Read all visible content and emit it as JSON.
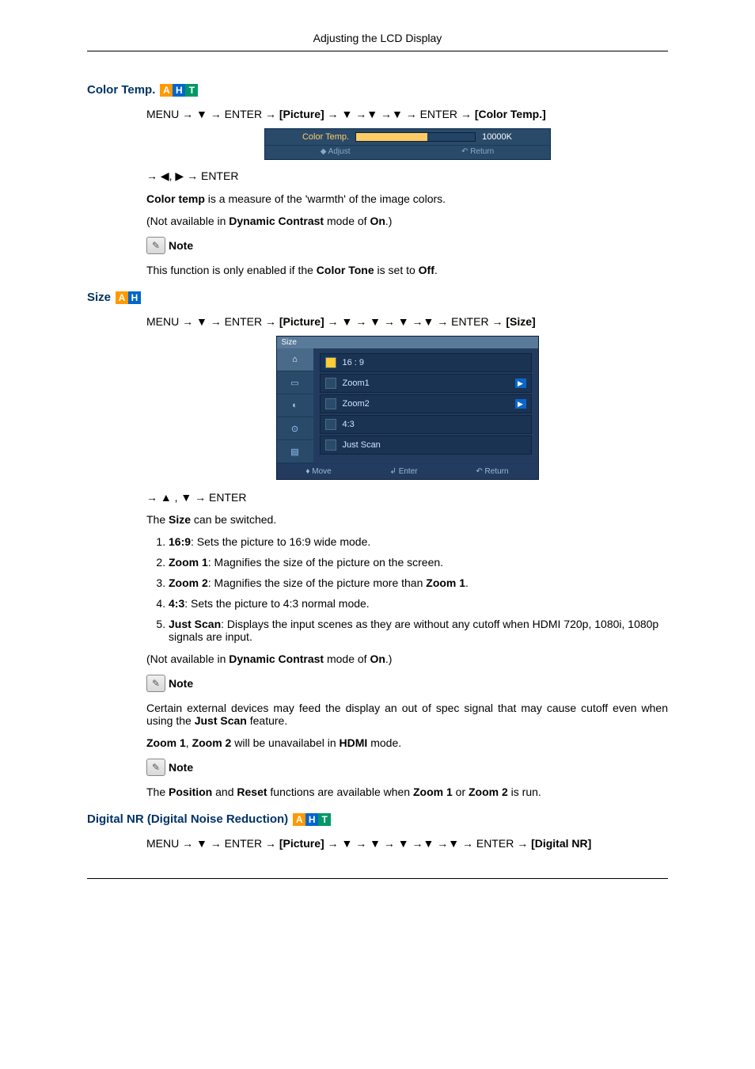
{
  "header": {
    "title": "Adjusting the LCD Display"
  },
  "sections": {
    "colortemp": {
      "title": "Color Temp.",
      "badges": [
        "A",
        "H",
        "T"
      ],
      "nav1_pre": "MENU → ▼ → ENTER → ",
      "nav1_picture": "[Picture]",
      "nav1_mid": " → ▼ →▼ →▼ → ENTER → ",
      "nav1_end": "[Color Temp.]",
      "osd": {
        "label": "Color Temp.",
        "value": "10000K",
        "foot_adjust": "◆ Adjust",
        "foot_return": "↶ Return"
      },
      "nav2": "→ ◀, ▶ → ENTER",
      "p1_a": "Color temp",
      "p1_b": " is a measure of the 'warmth' of the image colors.",
      "p2_a": "(Not available in ",
      "p2_b": "Dynamic Contrast",
      "p2_c": " mode of ",
      "p2_d": "On",
      "p2_e": ".)",
      "note_label": "Note",
      "p3_a": "This function is only enabled if the ",
      "p3_b": "Color Tone",
      "p3_c": " is set to ",
      "p3_d": "Off",
      "p3_e": "."
    },
    "size": {
      "title": "Size",
      "badges": [
        "A",
        "H"
      ],
      "nav1_pre": "MENU → ▼ → ENTER → ",
      "nav1_picture": "[Picture]",
      "nav1_mid": " → ▼ → ▼ → ▼ →▼ → ENTER → ",
      "nav1_end": "[Size]",
      "osd": {
        "title": "Size",
        "opts": [
          "16 : 9",
          "Zoom1",
          "Zoom2",
          "4:3",
          "Just Scan"
        ],
        "foot_move": "♦ Move",
        "foot_enter": "↲ Enter",
        "foot_return": "↶ Return"
      },
      "nav2": "→ ▲ , ▼ → ENTER",
      "intro_a": "The ",
      "intro_b": "Size",
      "intro_c": " can be switched.",
      "items": [
        {
          "b": "16:9",
          "t": ": Sets the picture to 16:9 wide mode."
        },
        {
          "b": "Zoom 1",
          "t": ": Magnifies the size of the picture on the screen."
        },
        {
          "b": "Zoom 2",
          "t_a": ": Magnifies the size of the picture more than ",
          "t_b": "Zoom 1",
          "t_c": "."
        },
        {
          "b": "4:3",
          "t": ": Sets the picture to 4:3 normal mode."
        },
        {
          "b": "Just Scan",
          "t": ": Displays the input scenes as they are without any cutoff when HDMI 720p, 1080i, 1080p signals are input."
        }
      ],
      "p2_a": "(Not available in ",
      "p2_b": "Dynamic Contrast",
      "p2_c": " mode of ",
      "p2_d": "On",
      "p2_e": ".)",
      "note_label": "Note",
      "p3_a": "Certain external devices may feed the display an out of spec signal that may cause cutoff even when using the ",
      "p3_b": "Just Scan",
      "p3_c": " feature.",
      "p4_a": "Zoom 1",
      "p4_b": ", ",
      "p4_c": "Zoom 2",
      "p4_d": " will be unavailabel in ",
      "p4_e": "HDMI",
      "p4_f": " mode.",
      "p5_a": "The ",
      "p5_b": "Position",
      "p5_c": " and ",
      "p5_d": "Reset",
      "p5_e": " functions are available when  ",
      "p5_f": "Zoom 1",
      "p5_g": " or  ",
      "p5_h": "Zoom 2",
      "p5_i": " is run."
    },
    "digitalnr": {
      "title": "Digital NR (Digital Noise Reduction)",
      "badges": [
        "A",
        "H",
        "T"
      ],
      "nav1_pre": "MENU → ▼ → ENTER → ",
      "nav1_picture": "[Picture]",
      "nav1_mid": " → ▼ → ▼ → ▼ →▼ →▼ → ENTER → ",
      "nav1_end": "[Digital NR]"
    }
  },
  "colors": {
    "heading": "#003366",
    "badge_a": "#ff9900",
    "badge_h": "#0066cc",
    "badge_t": "#009966",
    "osd_bg": "#2a4a6a"
  }
}
